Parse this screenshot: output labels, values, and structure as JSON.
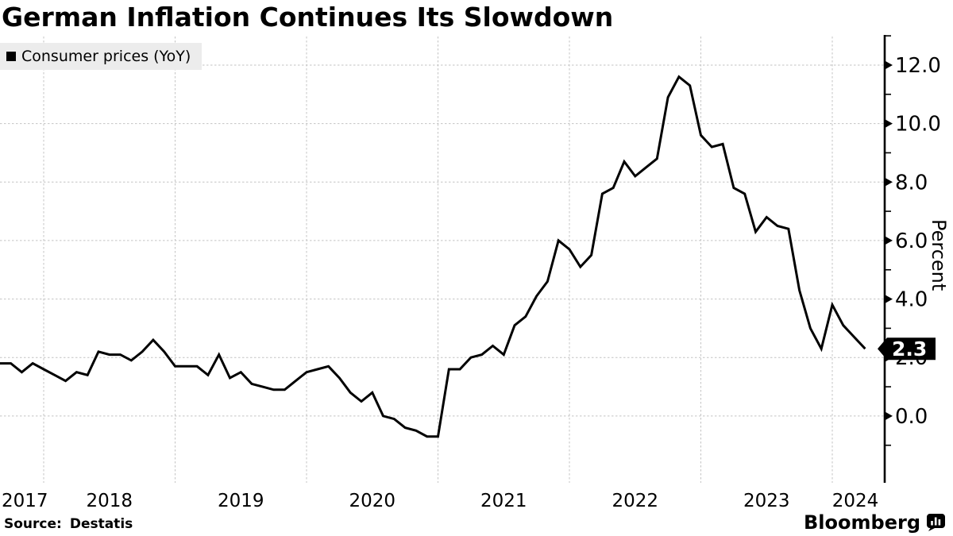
{
  "title": "German Inflation Continues Its Slowdown",
  "legend": {
    "label": "Consumer prices (YoY)",
    "swatch_color": "#000000"
  },
  "source": {
    "label": "Source:",
    "name": "Destatis"
  },
  "brand": {
    "name": "Bloomberg",
    "icon": "bloomberg-bars-icon"
  },
  "y_axis": {
    "title": "Percent",
    "side": "right",
    "major_tick_values": [
      12,
      10,
      8,
      6,
      4,
      2,
      0
    ],
    "major_tick_labels": [
      "12.0",
      "10.0",
      "8.0",
      "6.0",
      "4.0",
      "2.0",
      "0.0"
    ],
    "minor_tick_values": [
      13,
      11,
      9,
      7,
      5,
      3,
      1,
      -1
    ]
  },
  "x_axis": {
    "labels": [
      "2017",
      "2018",
      "2019",
      "2020",
      "2021",
      "2022",
      "2023",
      "2024"
    ]
  },
  "last_point": {
    "label": "2.3",
    "value": 2.3,
    "badge_bg": "#000000",
    "badge_text_color": "#ffffff"
  },
  "colors": {
    "line": "#000000",
    "background": "#ffffff",
    "gridline": "#c3c3c3",
    "legend_bg": "#ececec",
    "axis": "#000000"
  },
  "chart_data": {
    "type": "line",
    "title": "German Inflation Continues Its Slowdown",
    "ylabel": "Percent",
    "ylim": [
      -2.3,
      13.1
    ],
    "grid": "dashed, horizontal every 2.0 units, vertical at each year boundary",
    "legend_position": "top-left",
    "x_frequency": "monthly",
    "x_start": "2017-08",
    "x_end": "2024-03",
    "x": [
      "2017-08",
      "2017-09",
      "2017-10",
      "2017-11",
      "2017-12",
      "2018-01",
      "2018-02",
      "2018-03",
      "2018-04",
      "2018-05",
      "2018-06",
      "2018-07",
      "2018-08",
      "2018-09",
      "2018-10",
      "2018-11",
      "2018-12",
      "2019-01",
      "2019-02",
      "2019-03",
      "2019-04",
      "2019-05",
      "2019-06",
      "2019-07",
      "2019-08",
      "2019-09",
      "2019-10",
      "2019-11",
      "2019-12",
      "2020-01",
      "2020-02",
      "2020-03",
      "2020-04",
      "2020-05",
      "2020-06",
      "2020-07",
      "2020-08",
      "2020-09",
      "2020-10",
      "2020-11",
      "2020-12",
      "2021-01",
      "2021-02",
      "2021-03",
      "2021-04",
      "2021-05",
      "2021-06",
      "2021-07",
      "2021-08",
      "2021-09",
      "2021-10",
      "2021-11",
      "2021-12",
      "2022-01",
      "2022-02",
      "2022-03",
      "2022-04",
      "2022-05",
      "2022-06",
      "2022-07",
      "2022-08",
      "2022-09",
      "2022-10",
      "2022-11",
      "2022-12",
      "2023-01",
      "2023-02",
      "2023-03",
      "2023-04",
      "2023-05",
      "2023-06",
      "2023-07",
      "2023-08",
      "2023-09",
      "2023-10",
      "2023-11",
      "2023-12",
      "2024-01",
      "2024-02",
      "2024-03"
    ],
    "series": [
      {
        "name": "Consumer prices (YoY)",
        "color": "#000000",
        "values": [
          1.8,
          1.8,
          1.5,
          1.8,
          1.6,
          1.4,
          1.2,
          1.5,
          1.4,
          2.2,
          2.1,
          2.1,
          1.9,
          2.2,
          2.6,
          2.2,
          1.7,
          1.7,
          1.7,
          1.4,
          2.1,
          1.3,
          1.5,
          1.1,
          1.0,
          0.9,
          0.9,
          1.2,
          1.5,
          1.6,
          1.7,
          1.3,
          0.8,
          0.5,
          0.8,
          0.0,
          -0.1,
          -0.4,
          -0.5,
          -0.7,
          -0.7,
          1.6,
          1.6,
          2.0,
          2.1,
          2.4,
          2.1,
          3.1,
          3.4,
          4.1,
          4.6,
          6.0,
          5.7,
          5.1,
          5.5,
          7.6,
          7.8,
          8.7,
          8.2,
          8.5,
          8.8,
          10.9,
          11.6,
          11.3,
          9.6,
          9.2,
          9.3,
          7.8,
          7.6,
          6.3,
          6.8,
          6.5,
          6.4,
          4.3,
          3.0,
          2.3,
          3.8,
          3.1,
          2.7,
          2.3
        ]
      }
    ]
  }
}
